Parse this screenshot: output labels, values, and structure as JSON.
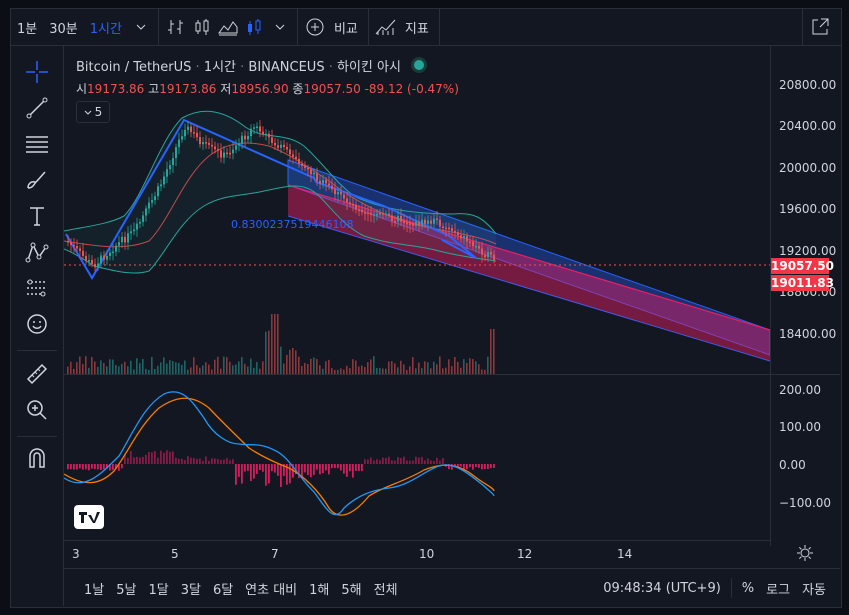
{
  "toolbar": {
    "intervals": [
      "1분",
      "30분",
      "1시간"
    ],
    "active_interval": "1시간",
    "compare_label": "비교",
    "indicators_label": "지표"
  },
  "legend": {
    "symbol": "Bitcoin / TetherUS",
    "interval": "1시간",
    "exchange": "BINANCEUS",
    "chart_type": "하이킨 아시",
    "open_key": "시",
    "open": "19173.86",
    "high_key": "고",
    "high": "19173.86",
    "low_key": "저",
    "low": "18956.90",
    "close_key": "종",
    "close": "19057.50",
    "change": "-89.12 (-0.47%)",
    "collapse_count": "5"
  },
  "drawing": {
    "fib_value": "0.8300237519446108"
  },
  "price_axis": {
    "labels": [
      "20800.00",
      "20400.00",
      "20000.00",
      "19600.00",
      "19200.00",
      "18800.00",
      "18400.00"
    ],
    "tag_last": "19057.50",
    "tag_second": "19011.83"
  },
  "osc_axis": {
    "labels": [
      "200.00",
      "100.00",
      "0.00",
      "−100.00"
    ]
  },
  "time_axis": {
    "labels": [
      "3",
      "5",
      "7",
      "10",
      "12",
      "14"
    ]
  },
  "bottom": {
    "ranges": [
      "1날",
      "5날",
      "1달",
      "3달",
      "6달",
      "연초 대비",
      "1해",
      "5해",
      "전체"
    ],
    "clock": "09:48:34 (UTC+9)",
    "percent": "%",
    "log": "로그",
    "auto": "자동"
  },
  "colors": {
    "up": "#26a69a",
    "down": "#ef5350",
    "accent": "#2962ff",
    "background": "#131722",
    "price_tag": "#f23645"
  },
  "icons": [
    "crosshair-icon",
    "trend-line-icon",
    "fib-icon",
    "brush-icon",
    "text-icon",
    "pattern-icon",
    "forecast-icon",
    "emoji-icon",
    "ruler-icon",
    "zoom-in-icon",
    "magnet-icon",
    "compare-plus-icon",
    "indicator-icon",
    "fullscreen-icon",
    "settings-gear-icon"
  ]
}
